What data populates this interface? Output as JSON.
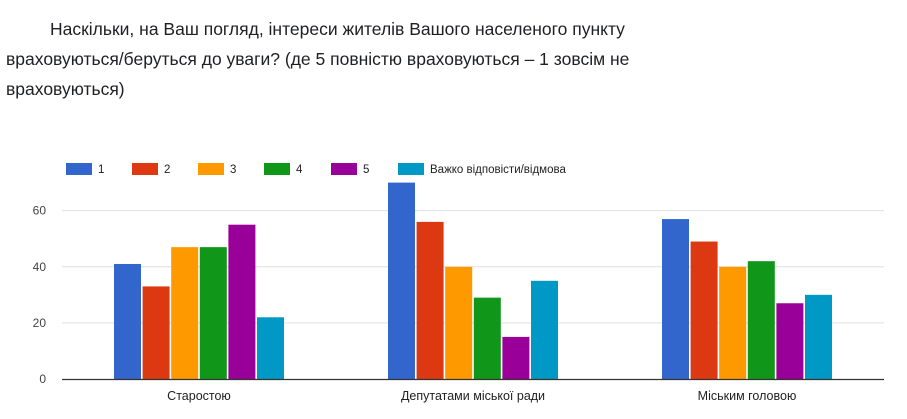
{
  "question": "Наскільки, на Ваш погляд, інтереси жителів Вашого населеного пункту враховуються/беруться до уваги? (де 5 повністю враховуються – 1 зовсім не враховуються)",
  "chart_data": {
    "type": "bar",
    "categories": [
      "Старостою",
      "Депутатами міської ради",
      "Міським головою"
    ],
    "series": [
      {
        "name": "1",
        "color": "#3366cc",
        "values": [
          41,
          70,
          57
        ]
      },
      {
        "name": "2",
        "color": "#dc3912",
        "values": [
          33,
          56,
          49
        ]
      },
      {
        "name": "3",
        "color": "#ff9900",
        "values": [
          47,
          40,
          40
        ]
      },
      {
        "name": "4",
        "color": "#109618",
        "values": [
          47,
          29,
          42
        ]
      },
      {
        "name": "5",
        "color": "#990099",
        "values": [
          55,
          15,
          27
        ]
      },
      {
        "name": "Важко відповісти/відмова",
        "color": "#0099c6",
        "values": [
          22,
          35,
          30
        ]
      }
    ],
    "y_ticks": [
      0,
      20,
      40,
      60
    ],
    "ylim": [
      0,
      72
    ],
    "grid": true,
    "legend_position": "top-left"
  }
}
